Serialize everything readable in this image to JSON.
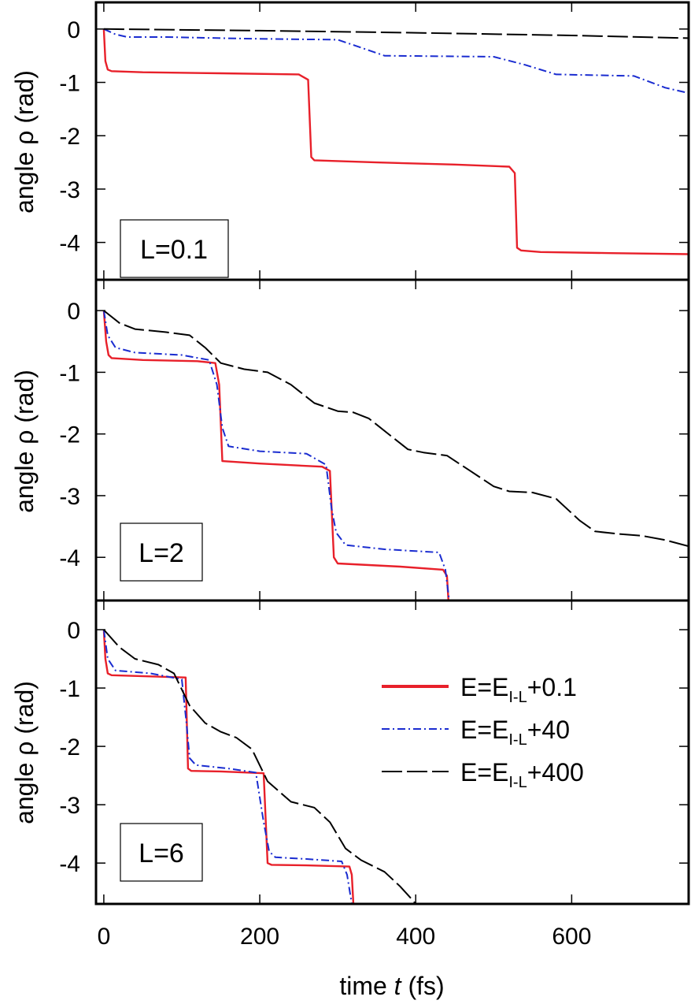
{
  "figure": {
    "xlabel": {
      "pre": "time ",
      "var": "t",
      "post": "  (fs)"
    },
    "ylabel": "angle ρ  (rad)"
  },
  "legend": {
    "entries": [
      {
        "pre": "E=E",
        "sub": "I-L",
        "post": "+0.1"
      },
      {
        "pre": "E=E",
        "sub": "I-L",
        "post": "+40"
      },
      {
        "pre": "E=E",
        "sub": "I-L",
        "post": "+400"
      }
    ]
  },
  "chart_data": [
    {
      "type": "line",
      "panel_label": "L=0.1",
      "xlim": [
        -10,
        750
      ],
      "ylim": [
        -4.7,
        0.5
      ],
      "xticks": [
        0,
        200,
        400,
        600
      ],
      "yticks": [
        0,
        -1,
        -2,
        -3,
        -4
      ],
      "series": [
        {
          "name": "E=E_I-L+0.1",
          "color": "#e8202a",
          "dash": "solid",
          "x": [
            0,
            2,
            5,
            10,
            50,
            150,
            250,
            262,
            266,
            270,
            350,
            450,
            520,
            527,
            530,
            535,
            560,
            650,
            750
          ],
          "y": [
            0,
            -0.6,
            -0.76,
            -0.79,
            -0.81,
            -0.83,
            -0.85,
            -0.95,
            -2.4,
            -2.46,
            -2.5,
            -2.54,
            -2.58,
            -2.7,
            -4.1,
            -4.15,
            -4.18,
            -4.2,
            -4.22
          ]
        },
        {
          "name": "E=E_I-L+40",
          "color": "#1a2cd0",
          "dash": "dashdot",
          "x": [
            0,
            15,
            30,
            80,
            180,
            300,
            330,
            360,
            500,
            540,
            580,
            680,
            720,
            750
          ],
          "y": [
            0,
            -0.1,
            -0.15,
            -0.15,
            -0.18,
            -0.2,
            -0.35,
            -0.5,
            -0.52,
            -0.67,
            -0.85,
            -0.88,
            -1.1,
            -1.2
          ]
        },
        {
          "name": "E=E_I-L+400",
          "color": "#000000",
          "dash": "longdash",
          "x": [
            0,
            200,
            400,
            600,
            750
          ],
          "y": [
            0,
            -0.03,
            -0.07,
            -0.12,
            -0.17
          ]
        }
      ]
    },
    {
      "type": "line",
      "panel_label": "L=2",
      "xlim": [
        -10,
        750
      ],
      "ylim": [
        -4.7,
        0.5
      ],
      "xticks": [
        0,
        200,
        400,
        600
      ],
      "yticks": [
        0,
        -1,
        -2,
        -3,
        -4
      ],
      "series": [
        {
          "name": "E=E_I-L+0.1",
          "color": "#e8202a",
          "dash": "solid",
          "x": [
            0,
            3,
            6,
            10,
            50,
            120,
            143,
            148,
            152,
            200,
            280,
            290,
            295,
            300,
            380,
            435,
            440,
            442
          ],
          "y": [
            0,
            -0.5,
            -0.72,
            -0.77,
            -0.8,
            -0.82,
            -0.85,
            -1.2,
            -2.44,
            -2.48,
            -2.53,
            -2.6,
            -4.0,
            -4.1,
            -4.15,
            -4.2,
            -4.3,
            -4.7
          ]
        },
        {
          "name": "E=E_I-L+40",
          "color": "#1a2cd0",
          "dash": "dashdot",
          "x": [
            0,
            5,
            15,
            40,
            100,
            135,
            145,
            152,
            160,
            200,
            260,
            285,
            292,
            298,
            310,
            360,
            430,
            438,
            443
          ],
          "y": [
            0,
            -0.4,
            -0.6,
            -0.68,
            -0.72,
            -0.8,
            -1.2,
            -1.9,
            -2.2,
            -2.28,
            -2.32,
            -2.5,
            -3.2,
            -3.6,
            -3.8,
            -3.87,
            -3.92,
            -4.2,
            -4.7
          ]
        },
        {
          "name": "E=E_I-L+400",
          "color": "#000000",
          "dash": "longdash",
          "x": [
            0,
            20,
            40,
            80,
            110,
            130,
            150,
            180,
            210,
            240,
            270,
            300,
            320,
            340,
            370,
            390,
            410,
            440,
            470,
            500,
            520,
            550,
            580,
            610,
            630,
            660,
            690,
            720,
            750
          ],
          "y": [
            0,
            -0.2,
            -0.3,
            -0.35,
            -0.4,
            -0.6,
            -0.85,
            -0.95,
            -1.0,
            -1.2,
            -1.5,
            -1.63,
            -1.65,
            -1.75,
            -2.05,
            -2.25,
            -2.3,
            -2.35,
            -2.6,
            -2.85,
            -2.93,
            -2.95,
            -3.05,
            -3.4,
            -3.58,
            -3.62,
            -3.65,
            -3.72,
            -3.82
          ]
        }
      ]
    },
    {
      "type": "line",
      "panel_label": "L=6",
      "xlim": [
        -10,
        750
      ],
      "ylim": [
        -4.7,
        0.5
      ],
      "xticks": [
        0,
        200,
        400,
        600
      ],
      "yticks": [
        0,
        -1,
        -2,
        -3,
        -4
      ],
      "series": [
        {
          "name": "E=E_I-L+0.1",
          "color": "#e8202a",
          "dash": "solid",
          "x": [
            0,
            2,
            5,
            10,
            60,
            105,
            108,
            112,
            150,
            205,
            210,
            215,
            260,
            315,
            318,
            320
          ],
          "y": [
            0,
            -0.5,
            -0.75,
            -0.78,
            -0.8,
            -0.82,
            -2.38,
            -2.42,
            -2.43,
            -2.46,
            -4.0,
            -4.03,
            -4.04,
            -4.06,
            -4.2,
            -4.7
          ]
        },
        {
          "name": "E=E_I-L+40",
          "color": "#1a2cd0",
          "dash": "dashdot",
          "x": [
            0,
            5,
            15,
            60,
            100,
            106,
            110,
            118,
            160,
            195,
            205,
            212,
            220,
            260,
            305,
            312,
            318
          ],
          "y": [
            0,
            -0.5,
            -0.7,
            -0.75,
            -0.85,
            -1.6,
            -2.2,
            -2.32,
            -2.38,
            -2.45,
            -3.3,
            -3.8,
            -3.9,
            -3.93,
            -3.97,
            -4.2,
            -4.7
          ]
        },
        {
          "name": "E=E_I-L+400",
          "color": "#000000",
          "dash": "longdash",
          "x": [
            0,
            20,
            40,
            70,
            90,
            110,
            130,
            150,
            170,
            190,
            210,
            240,
            270,
            290,
            310,
            330,
            360,
            380,
            395,
            400
          ],
          "y": [
            0,
            -0.3,
            -0.5,
            -0.6,
            -0.75,
            -1.3,
            -1.6,
            -1.75,
            -1.85,
            -2.05,
            -2.6,
            -2.95,
            -3.05,
            -3.3,
            -3.75,
            -3.95,
            -4.15,
            -4.4,
            -4.62,
            -4.7
          ]
        }
      ]
    }
  ]
}
